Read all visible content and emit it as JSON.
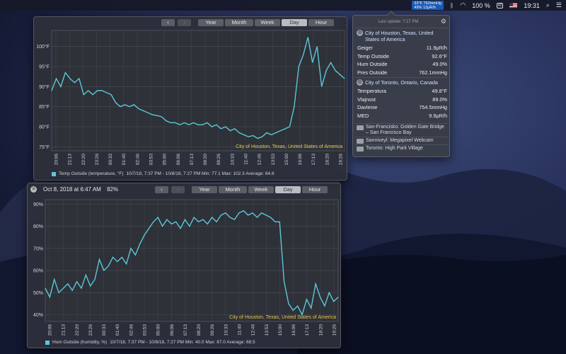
{
  "menubar": {
    "status_widget_line1": "93°F 762mmHg",
    "status_widget_line2": "49% 12μR/h",
    "battery_percent": "100 %",
    "battery_icon_text": "42",
    "clock": "19:31"
  },
  "popover": {
    "last_update": "Last update: 7:27 PM",
    "locations": [
      {
        "name": "City of Houston, Texas, United States of America",
        "readings": [
          {
            "label": "Geiger",
            "value": "11.9μR/h"
          },
          {
            "label": "Temp Outside",
            "value": "92.6°F"
          },
          {
            "label": "Hum Outside",
            "value": "49.0%"
          },
          {
            "label": "Pres Outside",
            "value": "762.1mmHg"
          }
        ]
      },
      {
        "name": "City of Toronto, Ontario, Canada",
        "readings": [
          {
            "label": "Temperatura",
            "value": "49.8°F"
          },
          {
            "label": "Vlajnost",
            "value": "89.0%"
          },
          {
            "label": "Davlenie",
            "value": "754.5mmHg"
          },
          {
            "label": "MED",
            "value": "9.9μR/h"
          }
        ]
      }
    ],
    "cameras": [
      "San-Francisko: Golden Gate Bridge – San Francisco Bay",
      "Sanniveyl: Megapixel Webcam",
      "Toronto: High Park Village"
    ]
  },
  "ranges": [
    "Year",
    "Month",
    "Week",
    "Day",
    "Hour"
  ],
  "active_range": "Day",
  "accent_color": "#5cc8d8",
  "location_label_color": "#e8c64a",
  "win1": {
    "location_label": "City of Houston, Texas, United States of America",
    "legend_series": "Temp Outside (temperature, °F)",
    "legend_stats": "10/7/18, 7:37 PM - 10/8/18, 7:27 PM   Min: 77.1   Max: 102.3   Average: 84.8"
  },
  "win2": {
    "title": "Oct 8, 2018 at 6:47 AM",
    "title_value": "82%",
    "location_label": "City of Houston, Texas, United States of America",
    "legend_series": "Hum Outside (humidity, %)",
    "legend_stats": "10/7/18, 7:37 PM - 10/8/18, 7:27 PM   Min: 40.0   Max: 87.0   Average: 68.5"
  },
  "chart_data": [
    {
      "type": "line",
      "title": "",
      "xlabel": "",
      "ylabel": "",
      "x_ticks": [
        "20:06",
        "21:13",
        "22:20",
        "23:26",
        "00:33",
        "01:40",
        "02:46",
        "03:53",
        "05:00",
        "06:06",
        "07:13",
        "08:20",
        "09:26",
        "10:33",
        "11:40",
        "12:46",
        "13:53",
        "15:00",
        "16:06",
        "17:13",
        "18:20",
        "19:26"
      ],
      "y_ticks": [
        "75°F",
        "80°F",
        "85°F",
        "90°F",
        "95°F",
        "100°F"
      ],
      "ylim": [
        74,
        104
      ],
      "grid": true,
      "series": [
        {
          "name": "Temp Outside (temperature, °F)",
          "values": [
            89,
            92,
            90,
            93.5,
            92,
            91,
            92,
            88,
            89,
            88,
            89,
            89,
            88.5,
            88,
            86,
            85,
            85.5,
            85,
            85.5,
            84.5,
            84,
            83.5,
            83,
            82.8,
            82.5,
            81.5,
            81,
            81,
            80.5,
            81,
            80.5,
            81,
            80.5,
            80.5,
            81,
            80,
            80.5,
            79.5,
            80,
            79,
            79.5,
            78.5,
            78,
            77.5,
            77.8,
            77.1,
            77.5,
            78.5,
            78,
            78.5,
            79,
            79.5,
            80,
            85,
            95,
            98,
            102.3,
            96,
            100,
            90,
            94,
            96,
            94,
            93,
            92
          ]
        }
      ]
    },
    {
      "type": "line",
      "title": "",
      "xlabel": "",
      "ylabel": "",
      "x_ticks": [
        "20:06",
        "21:13",
        "22:20",
        "23:26",
        "00:33",
        "01:40",
        "02:46",
        "03:53",
        "05:00",
        "06:06",
        "07:13",
        "08:20",
        "09:26",
        "10:33",
        "11:40",
        "12:46",
        "13:53",
        "15:00",
        "16:06",
        "17:13",
        "18:20",
        "19:26"
      ],
      "y_ticks": [
        "40%",
        "50%",
        "60%",
        "70%",
        "80%",
        "90%"
      ],
      "ylim": [
        37,
        92
      ],
      "grid": true,
      "series": [
        {
          "name": "Hum Outside (humidity, %)",
          "values": [
            52,
            48,
            56,
            50,
            52,
            54,
            51,
            55,
            52,
            58,
            53,
            56,
            65,
            60,
            62,
            66,
            64,
            66,
            63,
            70,
            67,
            72,
            76,
            79,
            82,
            84,
            80,
            83,
            81,
            82,
            79,
            83,
            80,
            84,
            82,
            83,
            81,
            84,
            82,
            85,
            86,
            84,
            83,
            86,
            87,
            85,
            86,
            84,
            86,
            85,
            84,
            82,
            82,
            55,
            45,
            42,
            44,
            40,
            47,
            43,
            54,
            48,
            44,
            50,
            46,
            48
          ]
        }
      ]
    }
  ]
}
